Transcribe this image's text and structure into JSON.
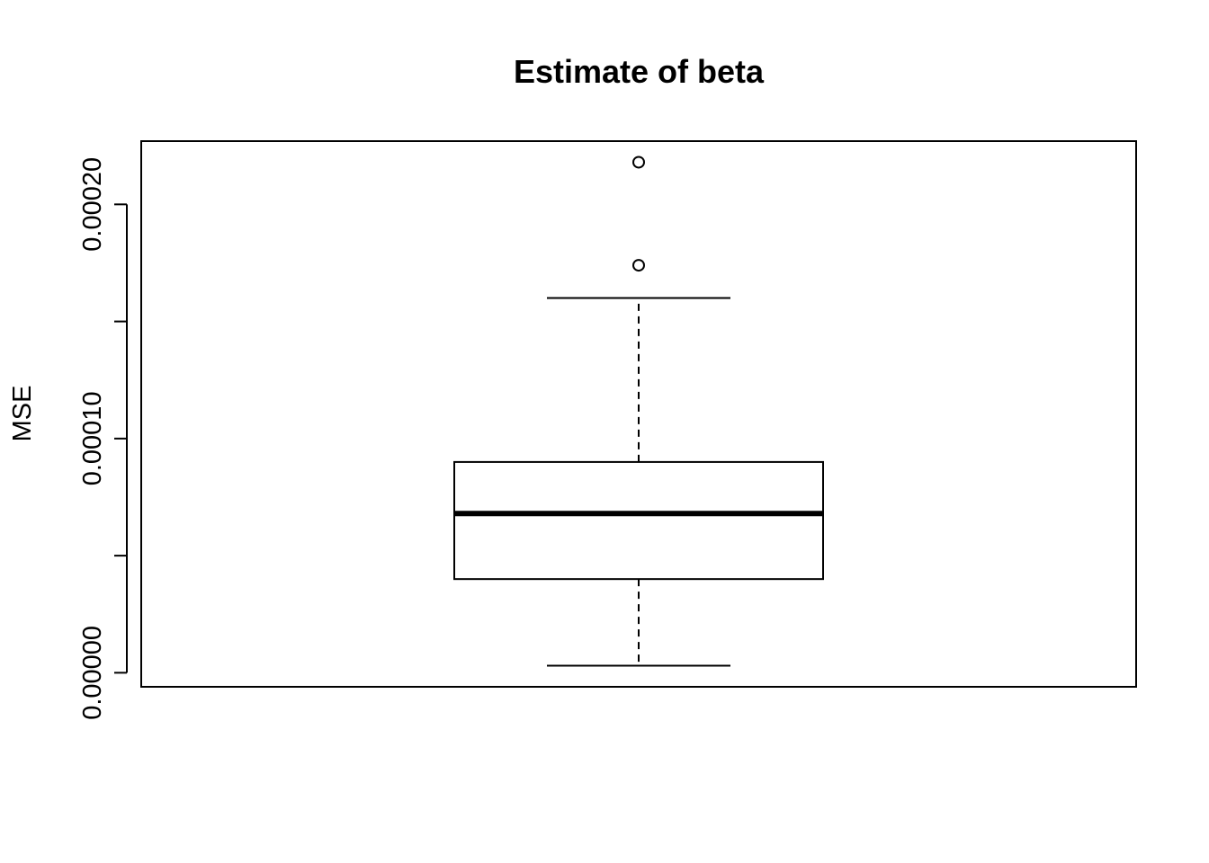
{
  "chart_data": {
    "type": "boxplot",
    "title": "Estimate of beta",
    "xlabel": "",
    "ylabel": "MSE",
    "ylim": [
      -6e-06,
      0.000227
    ],
    "y_ticks": [
      0.0,
      5e-05,
      0.0001,
      0.00015,
      0.0002
    ],
    "y_tick_labels": [
      "0.00000",
      "",
      "0.00010",
      "",
      "0.00020"
    ],
    "grid": false,
    "box": {
      "whisker_low": 3e-06,
      "q1": 4e-05,
      "median": 6.8e-05,
      "q3": 9e-05,
      "whisker_high": 0.00016,
      "outliers": [
        0.000174,
        0.000218
      ]
    }
  }
}
